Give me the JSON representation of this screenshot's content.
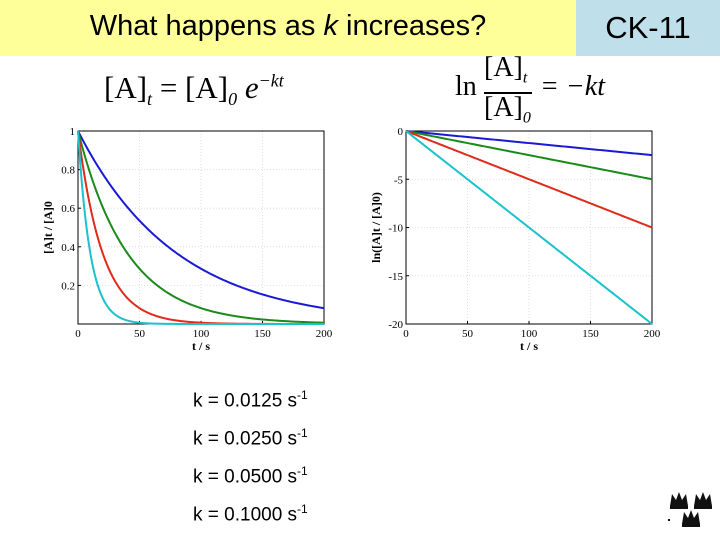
{
  "slide": {
    "title_before": "What happens as ",
    "title_var": "k",
    "title_after": " increases?",
    "tag": "CK-11"
  },
  "equations": {
    "left": {
      "lhs": "[A]",
      "lhs_sub": "t",
      "eq": " = ",
      "rhs": "[A]",
      "rhs_sub": "0",
      "base": " e",
      "exp": "−kt"
    },
    "right": {
      "ln": "ln",
      "num": "[A]",
      "num_sub": "t",
      "den": "[A]",
      "den_sub": "0",
      "eq": "= −kt"
    }
  },
  "legend": [
    {
      "label": "k = 0.0125 s",
      "unit_exp": "-1"
    },
    {
      "label": "k = 0.0250 s",
      "unit_exp": "-1"
    },
    {
      "label": "k = 0.0500 s",
      "unit_exp": "-1"
    },
    {
      "label": "k = 0.1000 s",
      "unit_exp": "-1"
    }
  ],
  "chart_data": [
    {
      "type": "line",
      "xlabel": "t / s",
      "ylabel": "[A]t / [A]0",
      "xlim": [
        0,
        200
      ],
      "ylim": [
        0,
        1
      ],
      "xticks": [
        0,
        50,
        100,
        150,
        200
      ],
      "yticks": [
        0.2,
        0.4,
        0.6,
        0.8,
        1
      ],
      "grid": true,
      "function": "exp(-k*t)",
      "series": [
        {
          "k": 0.0125,
          "color": "#1a1ad6"
        },
        {
          "k": 0.025,
          "color": "#1a8a1a"
        },
        {
          "k": 0.05,
          "color": "#e02a1a"
        },
        {
          "k": 0.1,
          "color": "#19c2cc"
        }
      ]
    },
    {
      "type": "line",
      "xlabel": "t / s",
      "ylabel": "ln([A]t / [A]0)",
      "xlim": [
        0,
        200
      ],
      "ylim": [
        -20,
        0
      ],
      "xticks": [
        0,
        50,
        100,
        150,
        200
      ],
      "yticks": [
        0,
        -5,
        -10,
        -15,
        -20
      ],
      "grid": true,
      "function": "-k*t",
      "series": [
        {
          "k": 0.0125,
          "color": "#1a1ad6"
        },
        {
          "k": 0.025,
          "color": "#1a8a1a"
        },
        {
          "k": 0.05,
          "color": "#e02a1a"
        },
        {
          "k": 0.1,
          "color": "#19c2cc"
        }
      ]
    }
  ]
}
